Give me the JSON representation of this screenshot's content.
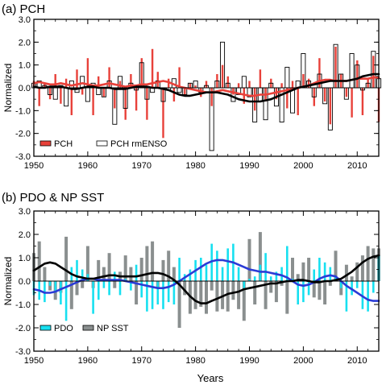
{
  "colors": {
    "pch_red": "#e8413a",
    "pch_rmenso_fill": "#ffffff",
    "pdo_cyan": "#17e0f0",
    "np_sst_gray": "#8a8f8f",
    "smooth_black": "#000000",
    "smooth_red": "#e8413a",
    "smooth_blue": "#2b3bd6"
  },
  "chart_data": [
    {
      "type": "bar",
      "title": "(a) PCH",
      "xlabel": "",
      "ylabel": "Normalized",
      "xlim": [
        1950,
        2014
      ],
      "ylim": [
        -3.0,
        3.0
      ],
      "x_ticks": [
        1950,
        1960,
        1970,
        1980,
        1990,
        2000,
        2010
      ],
      "y_ticks": [
        "3.0",
        "2.0",
        "1.0",
        "0.0",
        "-1.0",
        "-2.0",
        "-3.0"
      ],
      "legend_position": "bottom-left",
      "x": [
        1950,
        1951,
        1952,
        1953,
        1954,
        1955,
        1956,
        1957,
        1958,
        1959,
        1960,
        1961,
        1962,
        1963,
        1964,
        1965,
        1966,
        1967,
        1968,
        1969,
        1970,
        1971,
        1972,
        1973,
        1974,
        1975,
        1976,
        1977,
        1978,
        1979,
        1980,
        1981,
        1982,
        1983,
        1984,
        1985,
        1986,
        1987,
        1988,
        1989,
        1990,
        1991,
        1992,
        1993,
        1994,
        1995,
        1996,
        1997,
        1998,
        1999,
        2000,
        2001,
        2002,
        2003,
        2004,
        2005,
        2006,
        2007,
        2008,
        2009,
        2010,
        2011,
        2012,
        2013,
        2014
      ],
      "series": [
        {
          "name": "PCH",
          "style": "thin-bar",
          "values": [
            0.3,
            -0.8,
            0.2,
            -0.5,
            0.6,
            -0.7,
            0.4,
            -1.2,
            0.8,
            -0.3,
            1.3,
            -1.2,
            0.5,
            -0.4,
            0.9,
            -0.9,
            0.3,
            -1.4,
            0.6,
            -1.0,
            1.3,
            -1.4,
            1.7,
            0.7,
            -2.2,
            0.4,
            -0.6,
            0.9,
            -0.3,
            0.2,
            0.1,
            -0.4,
            0.3,
            -0.8,
            0.6,
            1.0,
            0.5,
            -0.3,
            0.2,
            -0.7,
            0.3,
            -1.0,
            0.8,
            -0.6,
            0.4,
            -0.5,
            0.2,
            -0.9,
            0.3,
            -1.2,
            0.6,
            0.4,
            -0.8,
            1.3,
            -0.6,
            -1.6,
            1.8,
            0.6,
            -0.4,
            -1.3,
            1.2,
            -1.2,
            0.4,
            1.4,
            -1.5
          ]
        },
        {
          "name": "PCH rmENSO",
          "style": "outlined-bar",
          "values": [
            0.2,
            0.3,
            0.1,
            -0.3,
            -0.5,
            0.1,
            -0.8,
            0.3,
            -0.2,
            0.5,
            -0.6,
            0.2,
            -0.3,
            -0.4,
            0.3,
            -1.6,
            0.5,
            -0.9,
            0.2,
            -0.1,
            1.1,
            -0.5,
            -0.2,
            0.3,
            -0.6,
            -0.1,
            0.4,
            -0.2,
            -0.3,
            0.2,
            0.3,
            -0.2,
            0.1,
            -2.75,
            0.3,
            2.0,
            0.2,
            -0.6,
            -0.3,
            0.5,
            -0.4,
            -1.5,
            -0.6,
            -1.4,
            0.2,
            -0.8,
            -1.5,
            0.9,
            -1.1,
            0.3,
            1.5,
            0.3,
            -0.4,
            0.6,
            -0.7,
            -1.85,
            1.9,
            0.6,
            -0.5,
            1.5,
            1.0,
            -0.1,
            0.2,
            1.6,
            0.4
          ]
        },
        {
          "name": "",
          "style": "smooth-line",
          "color_key": "smooth_red",
          "values": [
            0.2,
            0.25,
            0.2,
            0.15,
            0.15,
            0.2,
            0.15,
            0.1,
            0.15,
            0.2,
            0.15,
            0.1,
            0.1,
            0.15,
            0.2,
            0.15,
            0.1,
            0.05,
            0.1,
            0.1,
            0.15,
            0.15,
            0.2,
            0.25,
            0.3,
            0.25,
            0.15,
            0.05,
            0.0,
            -0.05,
            -0.1,
            -0.15,
            -0.2,
            -0.2,
            -0.15,
            -0.1,
            -0.15,
            -0.2,
            -0.25,
            -0.3,
            -0.35,
            -0.35,
            -0.3,
            -0.3,
            -0.25,
            -0.2,
            -0.15,
            -0.1,
            -0.05,
            0.0,
            0.05,
            0.1,
            0.2,
            0.3,
            0.35,
            0.35,
            0.3,
            0.3,
            0.3,
            0.35,
            0.4,
            0.4,
            0.4,
            0.45,
            0.45
          ]
        },
        {
          "name": "",
          "style": "smooth-line",
          "color_key": "smooth_black",
          "values": [
            0.05,
            0.0,
            0.0,
            0.05,
            0.05,
            0.05,
            0.0,
            -0.05,
            -0.05,
            0.0,
            0.05,
            0.05,
            0.0,
            0.0,
            0.0,
            -0.05,
            -0.05,
            -0.05,
            0.0,
            0.05,
            0.05,
            0.05,
            0.0,
            0.0,
            -0.05,
            -0.1,
            -0.2,
            -0.3,
            -0.35,
            -0.35,
            -0.3,
            -0.25,
            -0.2,
            -0.2,
            -0.2,
            -0.25,
            -0.3,
            -0.4,
            -0.5,
            -0.55,
            -0.6,
            -0.6,
            -0.6,
            -0.55,
            -0.5,
            -0.4,
            -0.3,
            -0.2,
            -0.1,
            0.0,
            0.05,
            0.1,
            0.15,
            0.2,
            0.25,
            0.3,
            0.3,
            0.3,
            0.3,
            0.35,
            0.4,
            0.5,
            0.55,
            0.6,
            0.6
          ]
        }
      ]
    },
    {
      "type": "bar",
      "title": "(b) PDO & NP SST",
      "xlabel": "Years",
      "ylabel": "Normalized",
      "xlim": [
        1950,
        2014
      ],
      "ylim": [
        -3.0,
        3.0
      ],
      "x_ticks": [
        1950,
        1960,
        1970,
        1980,
        1990,
        2000,
        2010
      ],
      "y_ticks": [
        "3.0",
        "2.0",
        "1.0",
        "0.0",
        "-1.0",
        "-2.0",
        "-3.0"
      ],
      "legend_position": "bottom-left",
      "x": [
        1950,
        1951,
        1952,
        1953,
        1954,
        1955,
        1956,
        1957,
        1958,
        1959,
        1960,
        1961,
        1962,
        1963,
        1964,
        1965,
        1966,
        1967,
        1968,
        1969,
        1970,
        1971,
        1972,
        1973,
        1974,
        1975,
        1976,
        1977,
        1978,
        1979,
        1980,
        1981,
        1982,
        1983,
        1984,
        1985,
        1986,
        1987,
        1988,
        1989,
        1990,
        1991,
        1992,
        1993,
        1994,
        1995,
        1996,
        1997,
        1998,
        1999,
        2000,
        2001,
        2002,
        2003,
        2004,
        2005,
        2006,
        2007,
        2008,
        2009,
        2010,
        2011,
        2012,
        2013,
        2014
      ],
      "series": [
        {
          "name": "PDO",
          "style": "thin-bar",
          "values": [
            -0.6,
            -0.8,
            -0.9,
            -0.2,
            -0.5,
            -1.0,
            -1.7,
            0.6,
            0.9,
            0.5,
            0.3,
            -1.4,
            -0.8,
            -0.3,
            -0.6,
            0.4,
            -0.6,
            0.1,
            -0.4,
            0.7,
            -0.7,
            -1.3,
            -1.2,
            -1.0,
            -1.2,
            -0.9,
            -1.0,
            1.0,
            0.3,
            0.5,
            0.9,
            1.0,
            0.7,
            1.6,
            1.3,
            0.6,
            1.4,
            1.6,
            0.6,
            -0.3,
            0.1,
            0.2,
            0.7,
            1.2,
            0.2,
            0.4,
            0.6,
            1.5,
            0.1,
            -1.0,
            -0.9,
            -0.6,
            0.5,
            1.0,
            0.8,
            0.6,
            0.2,
            -0.3,
            -1.3,
            -0.6,
            -0.3,
            -1.2,
            -1.3,
            -0.5,
            1.1
          ]
        },
        {
          "name": "NP SST",
          "style": "wide-bar",
          "values": [
            1.2,
            1.7,
            0.6,
            -0.4,
            -0.8,
            -0.5,
            1.9,
            -1.2,
            -0.6,
            -0.3,
            1.5,
            -0.3,
            0.9,
            0.6,
            1.2,
            -0.3,
            0.4,
            1.1,
            0.6,
            -1.0,
            1.0,
            1.5,
            1.7,
            -0.3,
            0.9,
            1.3,
            0.6,
            -2.0,
            -0.6,
            -1.4,
            -1.2,
            -1.1,
            -1.4,
            -0.4,
            -1.3,
            -1.2,
            -1.3,
            -0.8,
            -1.2,
            -1.7,
            1.8,
            -1.0,
            2.1,
            -1.2,
            -0.5,
            -0.9,
            -0.2,
            -1.4,
            1.0,
            0.3,
            0.8,
            1.0,
            -0.7,
            -0.8,
            -1.0,
            -0.2,
            1.3,
            -0.6,
            0.7,
            0.2,
            0.8,
            1.1,
            1.5,
            1.4,
            1.4
          ]
        },
        {
          "name": "",
          "style": "smooth-line",
          "color_key": "smooth_blue",
          "values": [
            -0.35,
            -0.4,
            -0.5,
            -0.5,
            -0.45,
            -0.35,
            -0.25,
            -0.15,
            -0.05,
            0.05,
            0.1,
            0.1,
            0.05,
            0.05,
            0.05,
            0.05,
            0.05,
            0.0,
            -0.05,
            -0.1,
            -0.15,
            -0.2,
            -0.25,
            -0.3,
            -0.3,
            -0.25,
            -0.15,
            0.0,
            0.15,
            0.3,
            0.45,
            0.6,
            0.75,
            0.85,
            0.9,
            0.9,
            0.85,
            0.8,
            0.7,
            0.6,
            0.5,
            0.45,
            0.4,
            0.4,
            0.35,
            0.3,
            0.25,
            0.15,
            0.0,
            -0.15,
            -0.2,
            -0.15,
            -0.05,
            0.1,
            0.2,
            0.25,
            0.2,
            0.0,
            -0.2,
            -0.35,
            -0.5,
            -0.65,
            -0.8,
            -0.85,
            -0.85
          ]
        },
        {
          "name": "",
          "style": "smooth-line",
          "color_key": "smooth_black",
          "values": [
            0.45,
            0.6,
            0.75,
            0.8,
            0.75,
            0.6,
            0.45,
            0.3,
            0.2,
            0.15,
            0.1,
            0.1,
            0.15,
            0.2,
            0.25,
            0.25,
            0.2,
            0.2,
            0.2,
            0.2,
            0.25,
            0.3,
            0.35,
            0.35,
            0.3,
            0.2,
            0.05,
            -0.15,
            -0.4,
            -0.65,
            -0.85,
            -0.95,
            -0.95,
            -0.85,
            -0.75,
            -0.65,
            -0.55,
            -0.5,
            -0.45,
            -0.35,
            -0.3,
            -0.25,
            -0.2,
            -0.15,
            -0.1,
            -0.1,
            -0.05,
            0.0,
            0.0,
            0.05,
            0.05,
            0.0,
            -0.05,
            -0.05,
            0.0,
            0.0,
            0.05,
            0.1,
            0.25,
            0.4,
            0.6,
            0.8,
            0.95,
            1.05,
            1.1
          ]
        }
      ]
    }
  ]
}
